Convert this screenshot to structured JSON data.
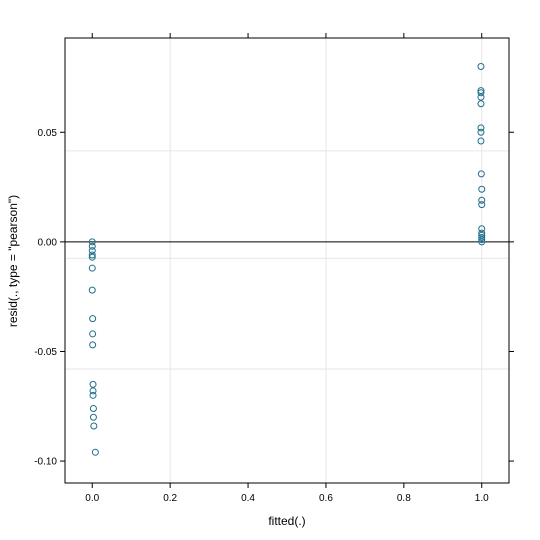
{
  "chart_data": {
    "type": "scatter",
    "title": "",
    "xlabel": "fitted(.)",
    "ylabel": "resid(., type = \"pearson\")",
    "xlim": [
      -0.07,
      1.07
    ],
    "ylim": [
      -0.11,
      0.093
    ],
    "x_ticks": [
      0.0,
      0.2,
      0.4,
      0.6,
      0.8,
      1.0
    ],
    "x_tick_labels": [
      "0.0",
      "0.2",
      "0.4",
      "0.6",
      "0.8",
      "1.0"
    ],
    "y_ticks": [
      -0.1,
      -0.05,
      0.0,
      0.05
    ],
    "y_tick_labels": [
      "-0.10",
      "-0.05",
      "0.00",
      "0.05"
    ],
    "reference_line_y": 0,
    "grid": true,
    "point_color": "#1f6f8b",
    "series": [
      {
        "points": [
          {
            "x": 0.0,
            "y": 0.0
          },
          {
            "x": 0.0,
            "y": -0.002
          },
          {
            "x": 0.0,
            "y": -0.004
          },
          {
            "x": 0.0,
            "y": -0.006
          },
          {
            "x": 0.0,
            "y": -0.007
          },
          {
            "x": 0.0,
            "y": -0.012
          },
          {
            "x": 0.0,
            "y": -0.022
          },
          {
            "x": 0.001,
            "y": -0.035
          },
          {
            "x": 0.001,
            "y": -0.042
          },
          {
            "x": 0.001,
            "y": -0.047
          },
          {
            "x": 0.002,
            "y": -0.065
          },
          {
            "x": 0.002,
            "y": -0.068
          },
          {
            "x": 0.002,
            "y": -0.07
          },
          {
            "x": 0.003,
            "y": -0.076
          },
          {
            "x": 0.003,
            "y": -0.08
          },
          {
            "x": 0.004,
            "y": -0.084
          },
          {
            "x": 0.008,
            "y": -0.096
          },
          {
            "x": 0.998,
            "y": 0.08
          },
          {
            "x": 0.998,
            "y": 0.069
          },
          {
            "x": 0.998,
            "y": 0.068
          },
          {
            "x": 0.998,
            "y": 0.066
          },
          {
            "x": 0.998,
            "y": 0.063
          },
          {
            "x": 0.998,
            "y": 0.052
          },
          {
            "x": 0.998,
            "y": 0.05
          },
          {
            "x": 0.998,
            "y": 0.046
          },
          {
            "x": 0.999,
            "y": 0.031
          },
          {
            "x": 1.0,
            "y": 0.024
          },
          {
            "x": 1.0,
            "y": 0.019
          },
          {
            "x": 1.0,
            "y": 0.017
          },
          {
            "x": 1.0,
            "y": 0.006
          },
          {
            "x": 1.0,
            "y": 0.004
          },
          {
            "x": 1.0,
            "y": 0.003
          },
          {
            "x": 1.0,
            "y": 0.002
          },
          {
            "x": 1.0,
            "y": 0.001
          },
          {
            "x": 1.0,
            "y": 0.0
          }
        ]
      }
    ]
  }
}
